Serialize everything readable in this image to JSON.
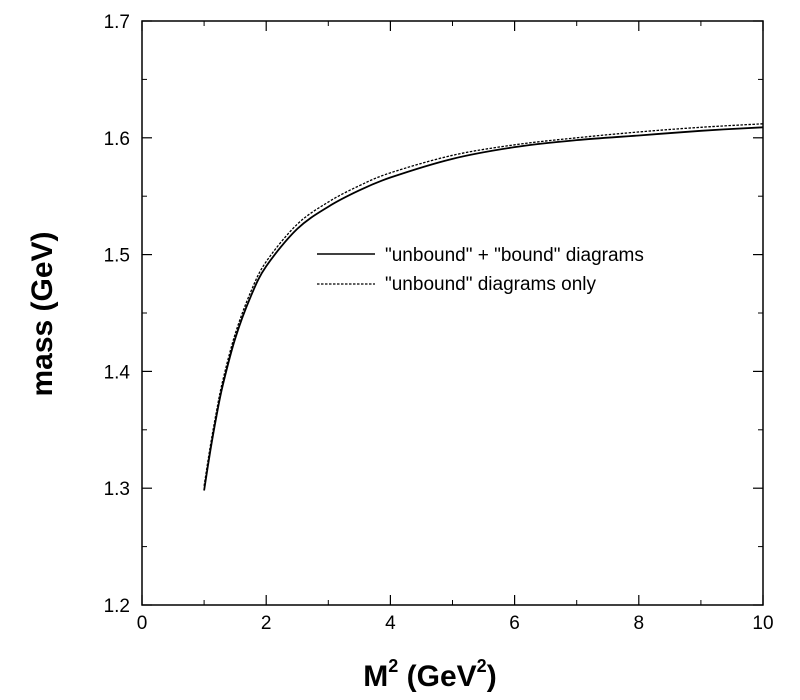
{
  "chart_data": {
    "type": "line",
    "title": "",
    "xlabel_base": "M",
    "xlabel_sup": "2",
    "xlabel_unit_pre": " (GeV",
    "xlabel_unit_sup": "2",
    "xlabel_unit_post": ")",
    "ylabel": "mass (GeV)",
    "xlim": [
      0,
      10
    ],
    "ylim": [
      1.2,
      1.7
    ],
    "x_ticks": [
      0,
      2,
      4,
      6,
      8,
      10
    ],
    "x_tick_labels": [
      "0",
      "2",
      "4",
      "6",
      "8",
      "10"
    ],
    "y_ticks": [
      1.2,
      1.3,
      1.4,
      1.5,
      1.6,
      1.7
    ],
    "y_tick_labels": [
      "1.2",
      "1.3",
      "1.4",
      "1.5",
      "1.6",
      "1.7"
    ],
    "grid": false,
    "legend_position": "center-right",
    "series": [
      {
        "name": "\"unbound\" + \"bound\" diagrams",
        "style": "solid",
        "x": [
          1.0,
          1.1,
          1.2,
          1.3,
          1.5,
          1.75,
          2.0,
          2.5,
          3.0,
          3.5,
          4.0,
          5.0,
          6.0,
          7.0,
          8.0,
          9.0,
          10.0
        ],
        "y": [
          1.298,
          1.332,
          1.362,
          1.388,
          1.428,
          1.464,
          1.49,
          1.522,
          1.541,
          1.555,
          1.566,
          1.582,
          1.592,
          1.598,
          1.602,
          1.606,
          1.609
        ]
      },
      {
        "name": "\"unbound\" diagrams only",
        "style": "dashed",
        "x": [
          1.0,
          1.1,
          1.2,
          1.3,
          1.5,
          1.75,
          2.0,
          2.5,
          3.0,
          3.5,
          4.0,
          5.0,
          6.0,
          7.0,
          8.0,
          9.0,
          10.0
        ],
        "y": [
          1.302,
          1.336,
          1.366,
          1.392,
          1.432,
          1.468,
          1.494,
          1.526,
          1.545,
          1.559,
          1.57,
          1.585,
          1.594,
          1.6,
          1.605,
          1.609,
          1.612
        ]
      }
    ]
  }
}
